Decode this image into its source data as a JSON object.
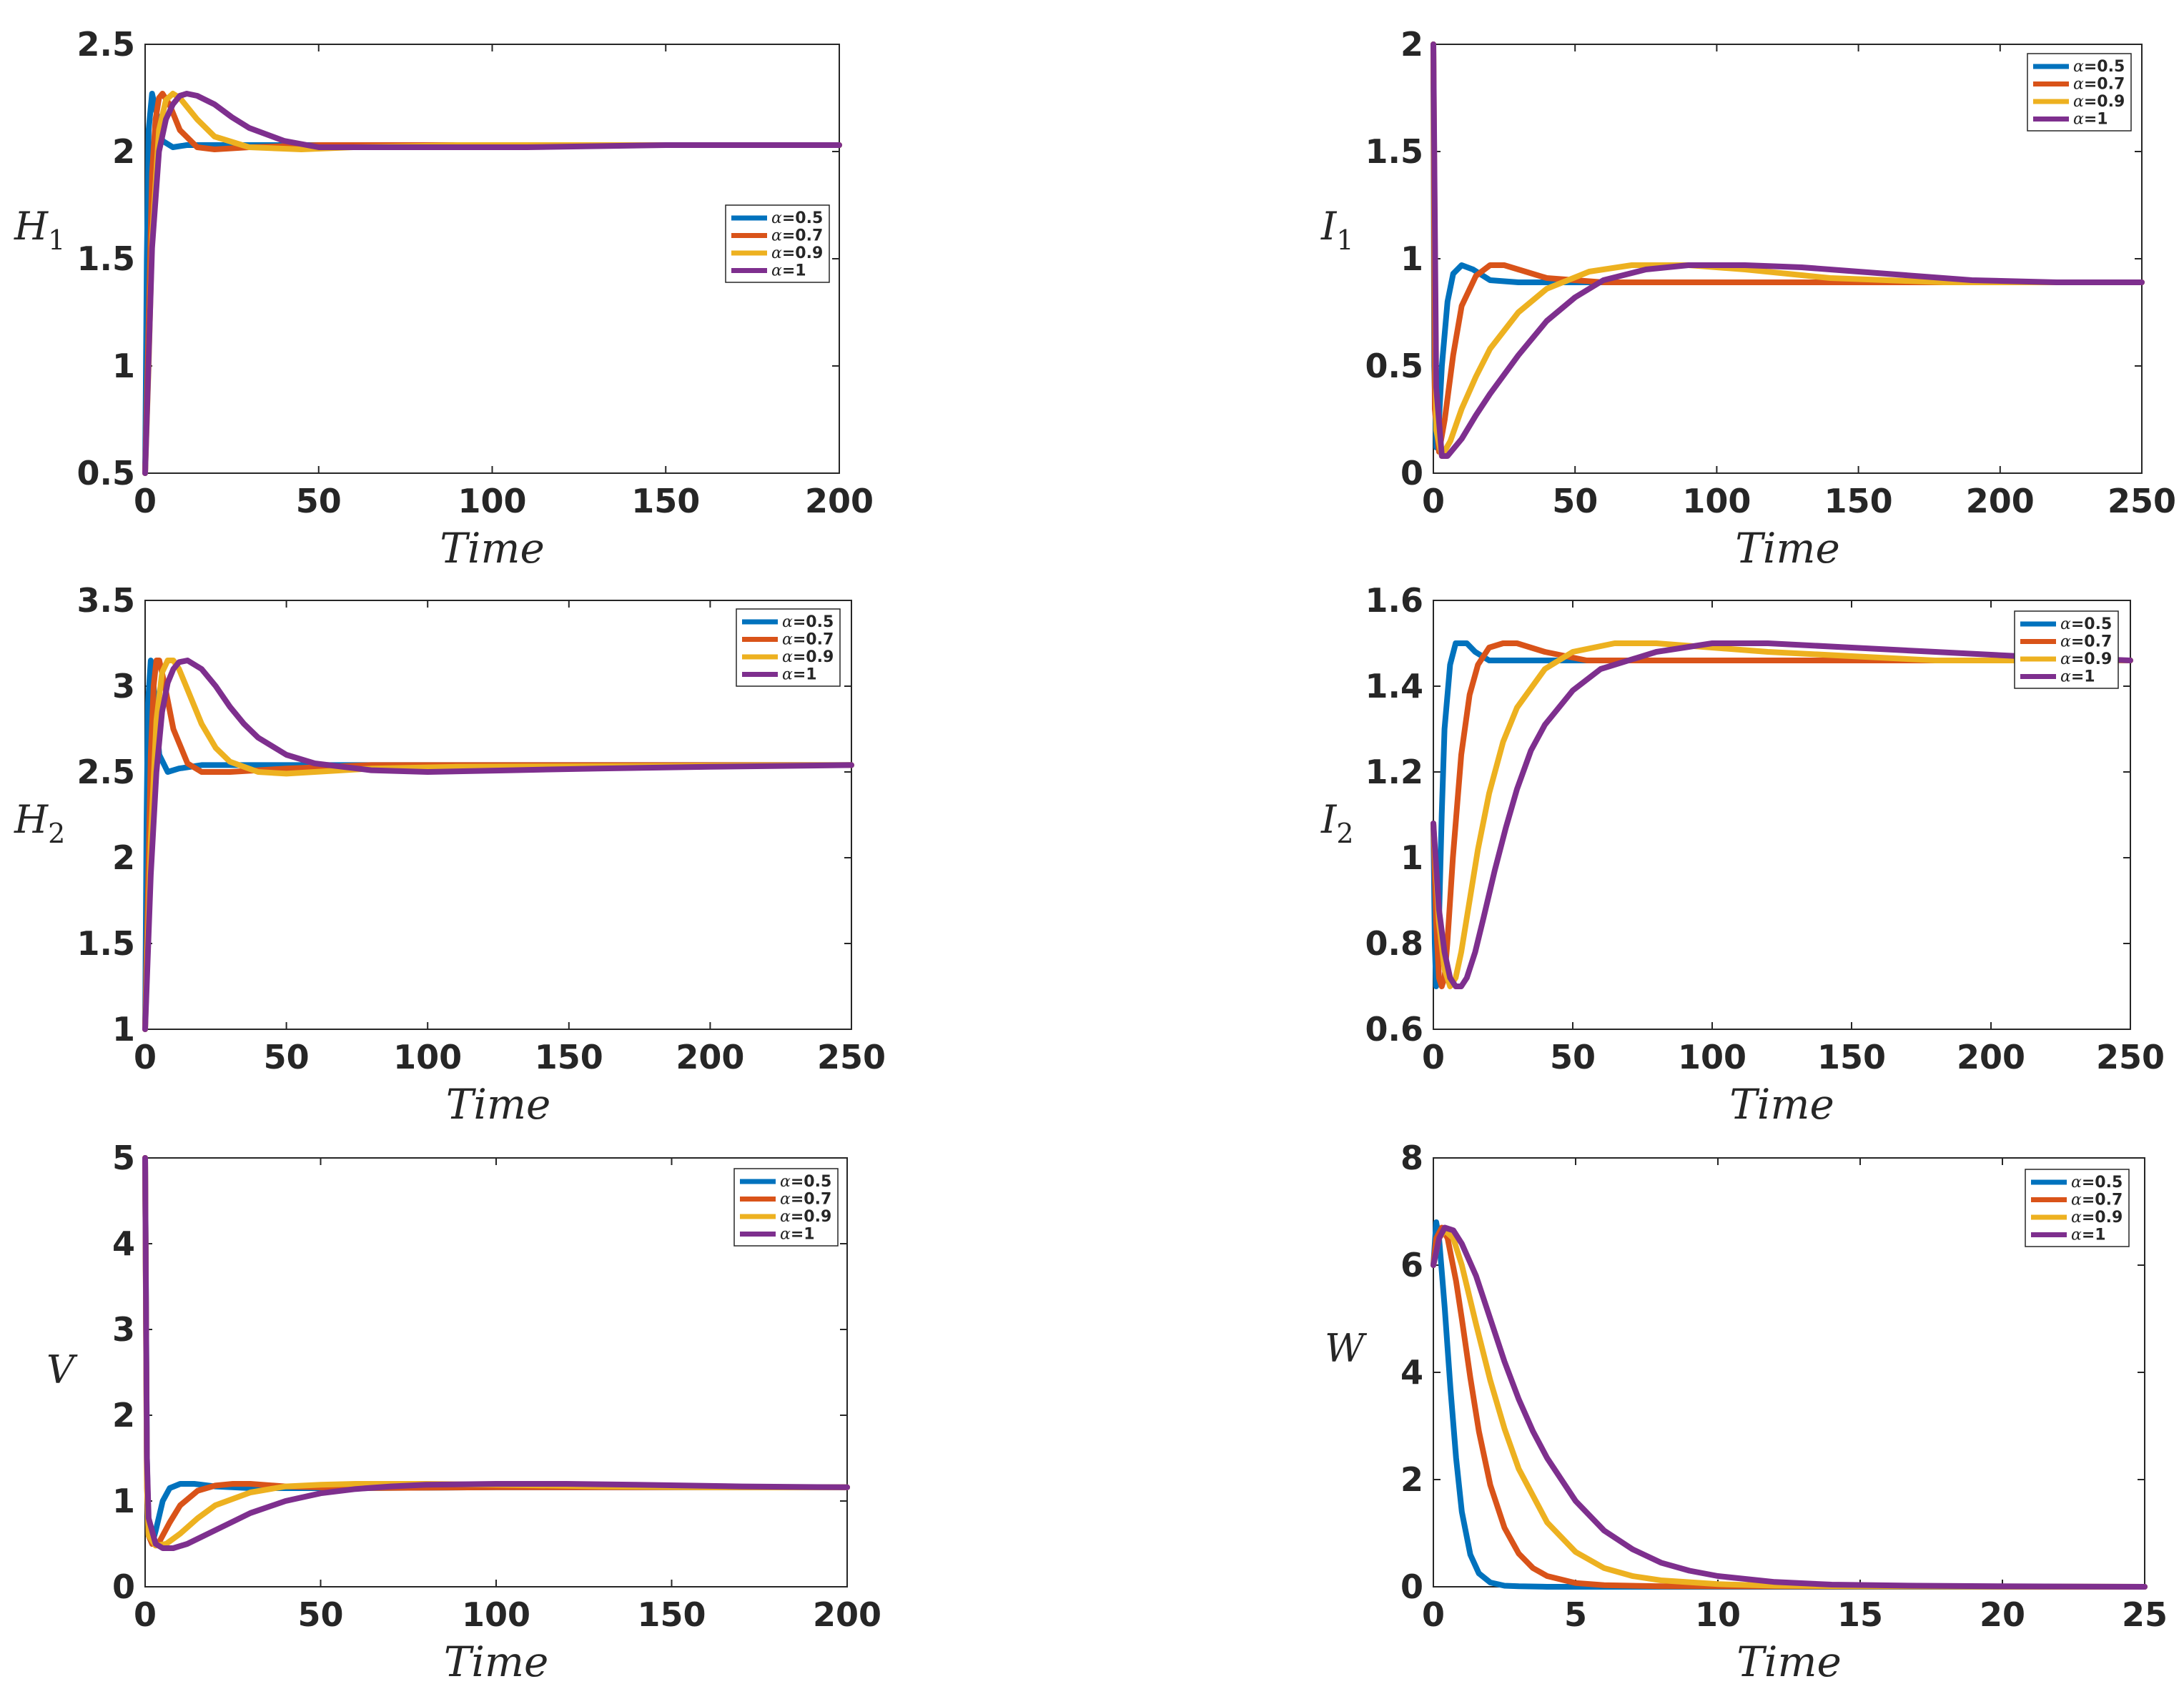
{
  "colors": [
    "#0072BD",
    "#D95319",
    "#EDB120",
    "#7E2F8E"
  ],
  "legend_labels": [
    {
      "prefix": "α",
      "suffix": "=0.5"
    },
    {
      "prefix": "α",
      "suffix": "=0.7"
    },
    {
      "prefix": "α",
      "suffix": "=0.9"
    },
    {
      "prefix": "α",
      "suffix": "=1"
    }
  ],
  "chart_data": [
    {
      "type": "line",
      "ylabel": "H",
      "ylabel_sub": "1",
      "xlabel": "Time",
      "xlim": [
        0,
        200
      ],
      "ylim": [
        0.5,
        2.5
      ],
      "xticks": [
        0,
        50,
        100,
        150,
        200
      ],
      "yticks": [
        0.5,
        1,
        1.5,
        2,
        2.5
      ],
      "legend_position": "center-right",
      "series": [
        {
          "name": "α=0.5",
          "x": [
            0,
            0.5,
            1,
            2,
            3,
            5,
            8,
            12,
            20,
            40,
            80,
            200
          ],
          "y": [
            0.5,
            1.5,
            2.1,
            2.27,
            2.2,
            2.05,
            2.02,
            2.03,
            2.03,
            2.03,
            2.03,
            2.03
          ]
        },
        {
          "name": "α=0.7",
          "x": [
            0,
            1,
            2,
            3,
            4,
            5,
            7,
            10,
            15,
            20,
            30,
            50,
            80,
            200
          ],
          "y": [
            0.5,
            1.2,
            1.9,
            2.15,
            2.25,
            2.27,
            2.22,
            2.1,
            2.02,
            2.01,
            2.02,
            2.03,
            2.03,
            2.03
          ]
        },
        {
          "name": "α=0.9",
          "x": [
            0,
            1,
            2,
            4,
            6,
            8,
            10,
            15,
            20,
            30,
            45,
            60,
            90,
            200
          ],
          "y": [
            0.5,
            1.0,
            1.6,
            2.1,
            2.24,
            2.27,
            2.25,
            2.15,
            2.07,
            2.02,
            2.01,
            2.02,
            2.03,
            2.03
          ]
        },
        {
          "name": "α=1",
          "x": [
            0,
            2,
            4,
            6,
            8,
            10,
            12,
            15,
            20,
            25,
            30,
            40,
            50,
            60,
            80,
            110,
            150,
            200
          ],
          "y": [
            0.5,
            1.55,
            2.0,
            2.15,
            2.22,
            2.26,
            2.27,
            2.26,
            2.22,
            2.16,
            2.11,
            2.05,
            2.02,
            2.02,
            2.02,
            2.02,
            2.03,
            2.03
          ]
        }
      ]
    },
    {
      "type": "line",
      "ylabel": "I",
      "ylabel_sub": "1",
      "xlabel": "Time",
      "xlim": [
        0,
        250
      ],
      "ylim": [
        0,
        2
      ],
      "xticks": [
        0,
        50,
        100,
        150,
        200,
        250
      ],
      "yticks": [
        0,
        0.5,
        1,
        1.5,
        2
      ],
      "legend_position": "top-right",
      "series": [
        {
          "name": "α=0.5",
          "x": [
            0,
            0.3,
            1,
            2,
            3,
            5,
            7,
            10,
            14,
            20,
            30,
            60,
            250
          ],
          "y": [
            2.0,
            0.5,
            0.12,
            0.25,
            0.5,
            0.8,
            0.93,
            0.97,
            0.95,
            0.9,
            0.89,
            0.89,
            0.89
          ]
        },
        {
          "name": "α=0.7",
          "x": [
            0,
            0.5,
            2,
            4,
            7,
            10,
            15,
            20,
            25,
            30,
            40,
            60,
            250
          ],
          "y": [
            2.0,
            0.3,
            0.1,
            0.25,
            0.55,
            0.78,
            0.92,
            0.97,
            0.97,
            0.95,
            0.91,
            0.89,
            0.89
          ]
        },
        {
          "name": "α=0.9",
          "x": [
            0,
            1,
            3,
            6,
            10,
            15,
            20,
            30,
            40,
            55,
            70,
            90,
            110,
            140,
            180,
            250
          ],
          "y": [
            2.0,
            0.2,
            0.08,
            0.15,
            0.3,
            0.45,
            0.58,
            0.75,
            0.86,
            0.94,
            0.97,
            0.97,
            0.95,
            0.91,
            0.89,
            0.89
          ]
        },
        {
          "name": "α=1",
          "x": [
            0,
            1,
            3,
            5,
            10,
            15,
            20,
            30,
            40,
            50,
            60,
            75,
            90,
            110,
            130,
            160,
            190,
            220,
            250
          ],
          "y": [
            2.0,
            0.4,
            0.08,
            0.08,
            0.16,
            0.27,
            0.37,
            0.55,
            0.71,
            0.82,
            0.9,
            0.95,
            0.97,
            0.97,
            0.96,
            0.93,
            0.9,
            0.89,
            0.89
          ]
        }
      ]
    },
    {
      "type": "line",
      "ylabel": "H",
      "ylabel_sub": "2",
      "xlabel": "Time",
      "xlim": [
        0,
        250
      ],
      "ylim": [
        1,
        3.5
      ],
      "xticks": [
        0,
        50,
        100,
        150,
        200,
        250
      ],
      "yticks": [
        1,
        1.5,
        2,
        2.5,
        3,
        3.5
      ],
      "legend_position": "top-right",
      "series": [
        {
          "name": "α=0.5",
          "x": [
            0,
            0.5,
            1,
            2,
            3,
            5,
            8,
            12,
            20,
            40,
            250
          ],
          "y": [
            1.0,
            2.2,
            2.9,
            3.15,
            3.0,
            2.6,
            2.5,
            2.52,
            2.54,
            2.54,
            2.54
          ]
        },
        {
          "name": "α=0.7",
          "x": [
            0,
            1,
            2,
            3,
            4,
            5,
            7,
            10,
            15,
            20,
            30,
            50,
            80,
            250
          ],
          "y": [
            1.0,
            1.8,
            2.6,
            3.0,
            3.15,
            3.15,
            3.0,
            2.75,
            2.55,
            2.5,
            2.5,
            2.52,
            2.54,
            2.54
          ]
        },
        {
          "name": "α=0.9",
          "x": [
            0,
            2,
            4,
            6,
            8,
            10,
            12,
            15,
            20,
            25,
            30,
            40,
            50,
            60,
            80,
            110,
            250
          ],
          "y": [
            1.0,
            2.1,
            2.8,
            3.08,
            3.15,
            3.15,
            3.1,
            2.98,
            2.78,
            2.64,
            2.56,
            2.5,
            2.49,
            2.5,
            2.52,
            2.53,
            2.54
          ]
        },
        {
          "name": "α=1",
          "x": [
            0,
            2,
            4,
            6,
            8,
            10,
            12,
            15,
            20,
            25,
            30,
            35,
            40,
            50,
            60,
            80,
            100,
            130,
            160,
            200,
            250
          ],
          "y": [
            1.0,
            1.9,
            2.5,
            2.85,
            3.02,
            3.1,
            3.14,
            3.15,
            3.1,
            3.0,
            2.88,
            2.78,
            2.7,
            2.6,
            2.55,
            2.51,
            2.5,
            2.51,
            2.52,
            2.53,
            2.54
          ]
        }
      ]
    },
    {
      "type": "line",
      "ylabel": "I",
      "ylabel_sub": "2",
      "xlabel": "Time",
      "xlim": [
        0,
        250
      ],
      "ylim": [
        0.6,
        1.6
      ],
      "xticks": [
        0,
        50,
        100,
        150,
        200,
        250
      ],
      "yticks": [
        0.6,
        0.8,
        1,
        1.2,
        1.4,
        1.6
      ],
      "legend_position": "top-right",
      "series": [
        {
          "name": "α=0.5",
          "x": [
            0,
            0.5,
            1,
            1.5,
            2,
            3,
            4,
            6,
            8,
            12,
            15,
            20,
            30,
            250
          ],
          "y": [
            1.08,
            0.8,
            0.7,
            0.72,
            0.85,
            1.1,
            1.3,
            1.45,
            1.5,
            1.5,
            1.48,
            1.46,
            1.46,
            1.46
          ]
        },
        {
          "name": "α=0.7",
          "x": [
            0,
            1,
            2,
            3,
            4,
            5,
            7,
            10,
            13,
            16,
            20,
            25,
            30,
            40,
            55,
            80,
            250
          ],
          "y": [
            1.08,
            0.85,
            0.72,
            0.7,
            0.72,
            0.8,
            1.0,
            1.24,
            1.38,
            1.45,
            1.49,
            1.5,
            1.5,
            1.48,
            1.46,
            1.46,
            1.46
          ]
        },
        {
          "name": "α=0.9",
          "x": [
            0,
            2,
            4,
            6,
            8,
            10,
            13,
            16,
            20,
            25,
            30,
            40,
            50,
            65,
            80,
            100,
            120,
            150,
            180,
            250
          ],
          "y": [
            1.08,
            0.85,
            0.74,
            0.7,
            0.72,
            0.78,
            0.9,
            1.02,
            1.15,
            1.27,
            1.35,
            1.44,
            1.48,
            1.5,
            1.5,
            1.49,
            1.48,
            1.47,
            1.46,
            1.46
          ]
        },
        {
          "name": "α=1",
          "x": [
            0,
            2,
            4,
            6,
            8,
            10,
            12,
            15,
            18,
            22,
            26,
            30,
            35,
            40,
            50,
            60,
            80,
            100,
            120,
            150,
            180,
            210,
            250
          ],
          "y": [
            1.08,
            0.88,
            0.78,
            0.72,
            0.7,
            0.7,
            0.72,
            0.78,
            0.86,
            0.97,
            1.07,
            1.16,
            1.25,
            1.31,
            1.39,
            1.44,
            1.48,
            1.5,
            1.5,
            1.49,
            1.48,
            1.47,
            1.46
          ]
        }
      ]
    },
    {
      "type": "line",
      "ylabel": "V",
      "ylabel_sub": "",
      "xlabel": "Time",
      "xlim": [
        0,
        200
      ],
      "ylim": [
        0,
        5
      ],
      "xticks": [
        0,
        50,
        100,
        150,
        200
      ],
      "yticks": [
        0,
        1,
        2,
        3,
        4,
        5
      ],
      "legend_position": "top-right",
      "series": [
        {
          "name": "α=0.5",
          "x": [
            0,
            0.5,
            1,
            2,
            3,
            5,
            7,
            10,
            14,
            20,
            30,
            60,
            100,
            200
          ],
          "y": [
            5.0,
            1.5,
            0.6,
            0.5,
            0.65,
            1.0,
            1.15,
            1.2,
            1.2,
            1.17,
            1.15,
            1.15,
            1.16,
            1.16
          ]
        },
        {
          "name": "α=0.7",
          "x": [
            0,
            0.5,
            1,
            2,
            4,
            7,
            10,
            15,
            20,
            25,
            30,
            40,
            60,
            100,
            200
          ],
          "y": [
            5.0,
            1.2,
            0.6,
            0.5,
            0.52,
            0.75,
            0.95,
            1.12,
            1.18,
            1.2,
            1.2,
            1.17,
            1.15,
            1.16,
            1.16
          ]
        },
        {
          "name": "α=0.9",
          "x": [
            0,
            0.5,
            1,
            3,
            6,
            10,
            15,
            20,
            30,
            40,
            50,
            60,
            80,
            100,
            130,
            160,
            200
          ],
          "y": [
            5.0,
            1.2,
            0.6,
            0.48,
            0.5,
            0.62,
            0.8,
            0.95,
            1.1,
            1.17,
            1.19,
            1.2,
            1.2,
            1.19,
            1.17,
            1.16,
            1.16
          ]
        },
        {
          "name": "α=1",
          "x": [
            0,
            0.5,
            1,
            3,
            5,
            8,
            12,
            16,
            20,
            25,
            30,
            40,
            50,
            60,
            70,
            80,
            100,
            120,
            140,
            170,
            200
          ],
          "y": [
            5.0,
            1.5,
            0.8,
            0.5,
            0.45,
            0.45,
            0.5,
            0.58,
            0.66,
            0.76,
            0.86,
            1.0,
            1.09,
            1.14,
            1.17,
            1.19,
            1.2,
            1.2,
            1.19,
            1.17,
            1.16
          ]
        }
      ]
    },
    {
      "type": "line",
      "ylabel": "W",
      "ylabel_sub": "",
      "xlabel": "Time",
      "xlim": [
        0,
        25
      ],
      "ylim": [
        0,
        8
      ],
      "xticks": [
        0,
        5,
        10,
        15,
        20,
        25
      ],
      "yticks": [
        0,
        2,
        4,
        6,
        8
      ],
      "legend_position": "top-right",
      "series": [
        {
          "name": "α=0.5",
          "x": [
            0,
            0.1,
            0.2,
            0.4,
            0.6,
            0.8,
            1.0,
            1.3,
            1.6,
            2.0,
            2.5,
            3.0,
            4.0,
            25
          ],
          "y": [
            6.0,
            6.8,
            6.5,
            5.2,
            3.7,
            2.4,
            1.4,
            0.6,
            0.25,
            0.08,
            0.02,
            0.01,
            0.0,
            0.0
          ]
        },
        {
          "name": "α=0.7",
          "x": [
            0,
            0.1,
            0.3,
            0.5,
            0.8,
            1.0,
            1.3,
            1.6,
            2.0,
            2.5,
            3.0,
            3.5,
            4.0,
            5.0,
            6.0,
            8.0,
            25
          ],
          "y": [
            6.0,
            6.5,
            6.7,
            6.5,
            5.7,
            5.0,
            3.9,
            2.9,
            1.9,
            1.1,
            0.62,
            0.35,
            0.2,
            0.07,
            0.03,
            0.01,
            0.0
          ]
        },
        {
          "name": "α=0.9",
          "x": [
            0,
            0.2,
            0.4,
            0.7,
            1.0,
            1.5,
            2.0,
            2.5,
            3.0,
            4.0,
            5.0,
            6.0,
            7.0,
            8.0,
            10.0,
            12.0,
            15.0,
            25
          ],
          "y": [
            6.0,
            6.5,
            6.65,
            6.5,
            6.0,
            4.9,
            3.85,
            2.95,
            2.2,
            1.2,
            0.65,
            0.35,
            0.2,
            0.12,
            0.05,
            0.02,
            0.01,
            0.0
          ]
        },
        {
          "name": "α=1",
          "x": [
            0,
            0.2,
            0.4,
            0.7,
            1.0,
            1.5,
            2.0,
            2.5,
            3.0,
            3.5,
            4.0,
            5.0,
            6.0,
            7.0,
            8.0,
            9.0,
            10.0,
            12.0,
            14.0,
            17.0,
            20.0,
            25.0
          ],
          "y": [
            6.0,
            6.5,
            6.7,
            6.65,
            6.4,
            5.8,
            5.0,
            4.2,
            3.5,
            2.9,
            2.4,
            1.6,
            1.05,
            0.7,
            0.45,
            0.3,
            0.2,
            0.09,
            0.04,
            0.02,
            0.01,
            0.0
          ]
        }
      ]
    }
  ]
}
